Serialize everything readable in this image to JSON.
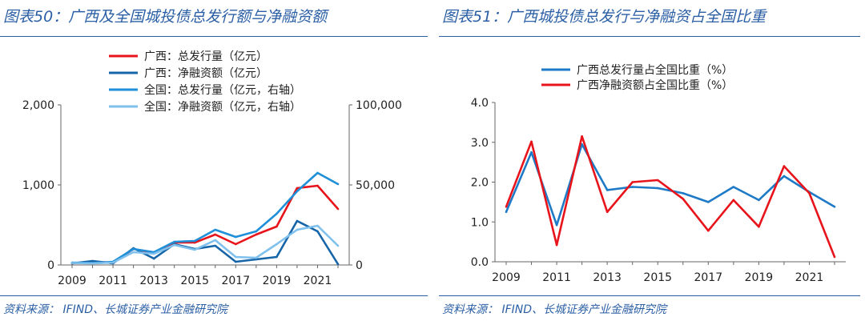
{
  "charts": [
    {
      "title": "图表50：广西及全国城投债总发行额与净融资额",
      "source": "资料来源： IFIND、长城证券产业金融研究院",
      "chart_data": {
        "type": "line",
        "title": "图表50：广西及全国城投债总发行额与净融资额",
        "x": [
          2009,
          2010,
          2011,
          2012,
          2013,
          2014,
          2015,
          2016,
          2017,
          2018,
          2019,
          2020,
          2021,
          2022
        ],
        "x_tick_labels": [
          "2009",
          "2011",
          "2013",
          "2015",
          "2017",
          "2019",
          "2021"
        ],
        "y_left": {
          "range": [
            0,
            2000
          ],
          "ticks": [
            0,
            1000,
            2000
          ],
          "tick_labels": [
            "0",
            "1,000",
            "2,000"
          ]
        },
        "y_right": {
          "range": [
            0,
            100000
          ],
          "ticks": [
            0,
            50000,
            100000
          ],
          "tick_labels": [
            "0",
            "50,000",
            "100,000"
          ]
        },
        "legend_position": "top",
        "series": [
          {
            "name": "广西：总发行量（亿元）",
            "axis": "left",
            "color": "#e8141b",
            "values": [
              20,
              40,
              30,
              200,
              150,
              280,
              280,
              380,
              260,
              380,
              480,
              960,
              990,
              700
            ]
          },
          {
            "name": "广西：净融资额（亿元）",
            "axis": "left",
            "color": "#1565a8",
            "values": [
              20,
              50,
              20,
              210,
              80,
              260,
              200,
              240,
              40,
              70,
              100,
              550,
              420,
              10
            ]
          },
          {
            "name": "全国：总发行量（亿元，右轴）",
            "axis": "right",
            "color": "#1e8fd8",
            "values": [
              1500,
              1200,
              2000,
              10000,
              8000,
              14500,
              15000,
              22000,
              17500,
              21000,
              32000,
              46000,
              57500,
              50500
            ]
          },
          {
            "name": "全国：净融资额（亿元，右轴）",
            "axis": "right",
            "color": "#7fc1ec",
            "values": [
              1200,
              1000,
              1500,
              8000,
              7000,
              12500,
              9500,
              15500,
              5000,
              4500,
              13000,
              22000,
              24500,
              12000
            ]
          }
        ]
      }
    },
    {
      "title": "图表51：广西城投债总发行与净融资占全国比重",
      "source": "资料来源： IFIND、长城证券产业金融研究院",
      "chart_data": {
        "type": "line",
        "title": "图表51：广西城投债总发行与净融资占全国比重",
        "x": [
          2009,
          2010,
          2011,
          2012,
          2013,
          2014,
          2015,
          2016,
          2017,
          2018,
          2019,
          2020,
          2021,
          2022
        ],
        "x_tick_labels": [
          "2009",
          "2011",
          "2013",
          "2015",
          "2017",
          "2019",
          "2021"
        ],
        "y_left": {
          "range": [
            0,
            4
          ],
          "ticks": [
            0,
            1,
            2,
            3,
            4
          ],
          "tick_labels": [
            "0.0",
            "1.0",
            "2.0",
            "3.0",
            "4.0"
          ]
        },
        "legend_position": "top",
        "series": [
          {
            "name": "广西总发行量占全国比重（%）",
            "axis": "left",
            "color": "#1e7ac6",
            "values": [
              1.25,
              2.75,
              0.92,
              2.95,
              1.8,
              1.88,
              1.85,
              1.72,
              1.5,
              1.88,
              1.55,
              2.15,
              1.75,
              1.38
            ]
          },
          {
            "name": "广西净融资额占全国比重（%）",
            "axis": "left",
            "color": "#e8141b",
            "values": [
              1.38,
              3.02,
              0.42,
              3.15,
              1.25,
              2.0,
              2.05,
              1.58,
              0.78,
              1.55,
              0.88,
              2.4,
              1.72,
              0.12
            ]
          }
        ]
      }
    }
  ]
}
